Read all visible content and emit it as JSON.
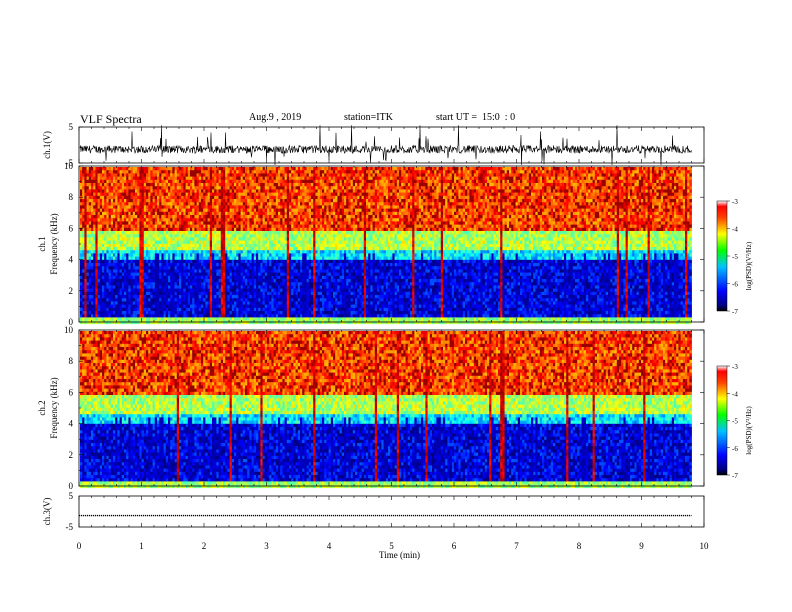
{
  "header": {
    "title": "VLF Spectra",
    "date": "Aug.9 , 2019",
    "station": "station=ITK",
    "start": "start UT =  15:0  : 0"
  },
  "chart_data": [
    {
      "type": "line",
      "panel": "ch1-waveform",
      "ylabel": "ch.1(V)",
      "ylim": [
        -5,
        5
      ],
      "yticks": [
        "5",
        "-5"
      ],
      "xlim": [
        0,
        10
      ],
      "x_end": 9.8,
      "baseline": -1.2,
      "amplitude_note": "noisy waveform around -1 V with frequent spikes"
    },
    {
      "type": "heatmap",
      "panel": "ch1-spectrogram",
      "ylabel_1": "ch.1",
      "ylabel_2": "Frequency (kHz)",
      "xlim": [
        0,
        10
      ],
      "ylim": [
        0,
        10
      ],
      "yticks": [
        "0",
        "2",
        "4",
        "6",
        "8",
        "10"
      ],
      "x_end": 9.8,
      "colorbar": {
        "label": "log(PSD)(V²/Hz)",
        "range": [
          -7,
          -3
        ],
        "ticks": [
          "-3",
          "-4",
          "-5",
          "-6",
          "-7"
        ]
      },
      "levels": [
        {
          "f_min": 0.0,
          "f_max": 0.3,
          "value": -5.0
        },
        {
          "f_min": 0.3,
          "f_max": 4.0,
          "value": -6.6
        },
        {
          "f_min": 4.0,
          "f_max": 4.8,
          "value": -5.6
        },
        {
          "f_min": 4.8,
          "f_max": 6.0,
          "value": -4.8
        },
        {
          "f_min": 6.0,
          "f_max": 10.0,
          "value": -3.8
        }
      ]
    },
    {
      "type": "heatmap",
      "panel": "ch2-spectrogram",
      "ylabel_1": "ch.2",
      "ylabel_2": "Frequency (kHz)",
      "xlim": [
        0,
        10
      ],
      "ylim": [
        0,
        10
      ],
      "yticks": [
        "0",
        "2",
        "4",
        "6",
        "8",
        "10"
      ],
      "x_end": 9.8,
      "colorbar": {
        "label": "log(PSD)(V²/Hz)",
        "range": [
          -7,
          -3
        ],
        "ticks": [
          "-3",
          "-4",
          "-5",
          "-6",
          "-7"
        ]
      },
      "levels": [
        {
          "f_min": 0.0,
          "f_max": 0.3,
          "value": -5.0
        },
        {
          "f_min": 0.3,
          "f_max": 4.0,
          "value": -6.6
        },
        {
          "f_min": 4.0,
          "f_max": 4.8,
          "value": -5.6
        },
        {
          "f_min": 4.8,
          "f_max": 6.0,
          "value": -4.8
        },
        {
          "f_min": 6.0,
          "f_max": 10.0,
          "value": -3.8
        }
      ]
    },
    {
      "type": "line",
      "panel": "ch3-waveform",
      "ylabel": "ch.3(V)",
      "ylim": [
        -5,
        5
      ],
      "yticks": [
        "5",
        "-5"
      ],
      "xlim": [
        0,
        10
      ],
      "x_end": 9.8,
      "x": [
        0,
        9.8
      ],
      "y": [
        -1.3,
        -1.3
      ],
      "xlabel": "Time (min)",
      "xticks": [
        "0",
        "1",
        "2",
        "3",
        "4",
        "5",
        "6",
        "7",
        "8",
        "9",
        "10"
      ]
    }
  ]
}
